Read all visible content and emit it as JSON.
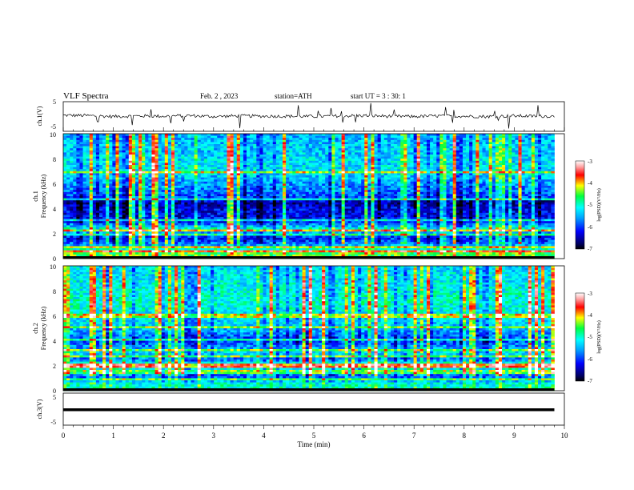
{
  "header": {
    "title": "VLF Spectra",
    "date": "Feb. 2 , 2023",
    "station": "station=ATH",
    "start": "start UT = 3 : 30: 1"
  },
  "chart_data": [
    {
      "type": "line",
      "ylabel": "ch.1(V)",
      "ylim": [
        -5,
        5
      ],
      "yticks": [
        "5",
        "-5"
      ],
      "xlim": [
        0,
        10
      ],
      "x": [
        0.0,
        0.5,
        1.0,
        1.5,
        2.0,
        2.5,
        3.0,
        3.5,
        4.0,
        4.5,
        5.0,
        5.5,
        6.0,
        6.5,
        7.0,
        7.5,
        8.0,
        8.5,
        9.0,
        9.5,
        9.8
      ],
      "values": [
        0.4,
        0.3,
        0.0,
        0.2,
        0.1,
        0.3,
        0.0,
        0.2,
        0.1,
        0.1,
        0.0,
        0.2,
        0.3,
        0.1,
        0.0,
        0.2,
        0.1,
        0.0,
        0.2,
        0.1,
        0.1
      ]
    },
    {
      "type": "heatmap",
      "ylabel": "ch.1",
      "ylabel2": "Frequency (kHz)",
      "ylim": [
        0,
        10
      ],
      "yticks": [
        "0",
        "2",
        "4",
        "6",
        "8",
        "10"
      ],
      "xlim": [
        0,
        9.8
      ],
      "colorbar": {
        "label": "log(PSD)(V²/Hz)",
        "range": [
          -7,
          -3
        ],
        "ticks": [
          "-3",
          "-4",
          "-5",
          "-6",
          "-7"
        ]
      },
      "mean_level_by_freq_kHz": [
        [
          0.5,
          -4.5
        ],
        [
          1.0,
          -5.4
        ],
        [
          1.5,
          -6.1
        ],
        [
          2.0,
          -5.8
        ],
        [
          2.3,
          -4.8
        ],
        [
          3.0,
          -6.2
        ],
        [
          4.0,
          -6.3
        ],
        [
          4.5,
          -6.5
        ],
        [
          5.0,
          -5.9
        ],
        [
          6.0,
          -5.6
        ],
        [
          7.0,
          -5.2
        ],
        [
          8.0,
          -5.3
        ],
        [
          9.0,
          -5.4
        ],
        [
          10.0,
          -5.5
        ]
      ]
    },
    {
      "type": "heatmap",
      "ylabel": "ch.2",
      "ylabel2": "Frequency (kHz)",
      "ylim": [
        0,
        10
      ],
      "yticks": [
        "0",
        "2",
        "4",
        "6",
        "8",
        "10"
      ],
      "xlim": [
        0,
        9.8
      ],
      "colorbar": {
        "label": "log(PSD)(V²/Hz)",
        "range": [
          -7,
          -3
        ],
        "ticks": [
          "-3",
          "-4",
          "-5",
          "-6",
          "-7"
        ]
      },
      "mean_level_by_freq_kHz": [
        [
          0.5,
          -5.0
        ],
        [
          1.0,
          -5.8
        ],
        [
          1.5,
          -5.6
        ],
        [
          2.0,
          -4.4
        ],
        [
          2.5,
          -5.8
        ],
        [
          3.0,
          -5.2
        ],
        [
          4.0,
          -6.0
        ],
        [
          5.0,
          -5.4
        ],
        [
          6.0,
          -5.2
        ],
        [
          7.0,
          -5.0
        ],
        [
          8.0,
          -5.1
        ],
        [
          9.0,
          -5.2
        ],
        [
          10.0,
          -5.3
        ]
      ]
    },
    {
      "type": "line",
      "ylabel": "ch.3(V)",
      "ylim": [
        -5,
        5
      ],
      "yticks": [
        "5",
        "-5"
      ],
      "xlim": [
        0,
        10
      ],
      "xlabel": "Time (min)",
      "xticks": [
        "0",
        "1",
        "2",
        "3",
        "4",
        "5",
        "6",
        "7",
        "8",
        "9",
        "10"
      ],
      "x": [
        0.0,
        9.8
      ],
      "values": [
        -0.2,
        -0.2
      ]
    }
  ]
}
